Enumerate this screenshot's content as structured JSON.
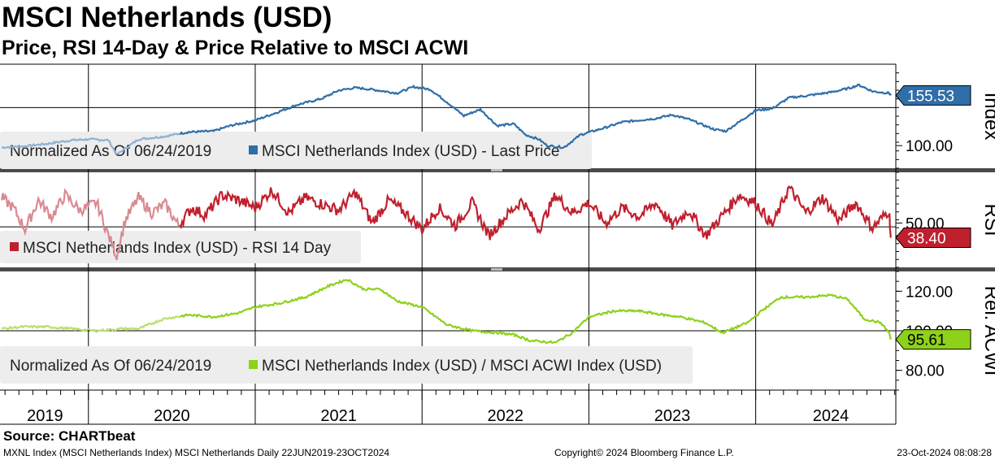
{
  "title": "MSCI Netherlands (USD)",
  "subtitle": "Price, RSI 14-Day & Price Relative to MSCI ACWI",
  "source": "Source: CHARTbeat",
  "footer": {
    "left": "MXNL Index (MSCI Netherlands Index) MSCI Netherlands  Daily 22JUN2019-23OCT2024",
    "center": "Copyright© 2024 Bloomberg Finance L.P.",
    "right": "23-Oct-2024 08:08:28"
  },
  "colors": {
    "price": "#2f6ea8",
    "price_early": "#8fb1d3",
    "rsi": "#c0202e",
    "rsi_early": "#d98a92",
    "rel": "#8ed11a",
    "rel_early": "#b9e06c",
    "legend_bg": "#ededed"
  },
  "chart_data": [
    {
      "type": "line",
      "panel": "Index",
      "axis_title": "Index",
      "legend_prefix": "Normalized As Of 06/24/2019",
      "legend": "MSCI Netherlands Index (USD) - Last Price",
      "ylim": [
        75,
        190
      ],
      "yticks": [
        100
      ],
      "tick_labels": [
        "100.00"
      ],
      "hline": 142,
      "last_value": 155.53,
      "last_label": "155.53",
      "series": [
        {
          "name": "MSCI Netherlands Index (USD) - Last Price",
          "x": [
            2019.48,
            2019.6,
            2019.75,
            2019.9,
            2020.0,
            2020.12,
            2020.17,
            2020.2,
            2020.3,
            2020.45,
            2020.6,
            2020.75,
            2020.85,
            2021.0,
            2021.12,
            2021.25,
            2021.4,
            2021.5,
            2021.6,
            2021.7,
            2021.85,
            2021.95,
            2022.05,
            2022.15,
            2022.25,
            2022.35,
            2022.45,
            2022.55,
            2022.62,
            2022.7,
            2022.75,
            2022.85,
            2022.95,
            2023.1,
            2023.2,
            2023.3,
            2023.4,
            2023.5,
            2023.6,
            2023.75,
            2023.82,
            2023.9,
            2024.0,
            2024.1,
            2024.2,
            2024.3,
            2024.45,
            2024.55,
            2024.62,
            2024.7,
            2024.8,
            2024.81
          ],
          "values": [
            98,
            99,
            102,
            106,
            107,
            106,
            90,
            94,
            107,
            110,
            115,
            116,
            122,
            128,
            136,
            145,
            152,
            161,
            164,
            162,
            158,
            165,
            162,
            148,
            133,
            140,
            122,
            124,
            112,
            107,
            100,
            98,
            112,
            120,
            126,
            128,
            130,
            134,
            129,
            118,
            116,
            126,
            139,
            141,
            153,
            155,
            159,
            163,
            167,
            160,
            158,
            155.53
          ]
        }
      ]
    },
    {
      "type": "line",
      "panel": "RSI",
      "axis_title": "RSI",
      "legend": "MSCI Netherlands Index (USD) - RSI 14 Day",
      "ylim": [
        15,
        90
      ],
      "yticks": [
        50
      ],
      "tick_labels": [
        "50.00"
      ],
      "hline": 47,
      "last_value": 38.4,
      "last_label": "38.40",
      "series": [
        {
          "name": "MSCI Netherlands Index (USD) - RSI 14 Day",
          "x": [
            2019.48,
            2019.55,
            2019.62,
            2019.7,
            2019.78,
            2019.86,
            2019.95,
            2020.05,
            2020.12,
            2020.17,
            2020.22,
            2020.3,
            2020.38,
            2020.46,
            2020.54,
            2020.62,
            2020.7,
            2020.8,
            2020.9,
            2021.0,
            2021.1,
            2021.2,
            2021.3,
            2021.4,
            2021.5,
            2021.6,
            2021.7,
            2021.8,
            2021.9,
            2022.0,
            2022.1,
            2022.2,
            2022.3,
            2022.4,
            2022.5,
            2022.6,
            2022.7,
            2022.8,
            2022.9,
            2023.0,
            2023.1,
            2023.2,
            2023.3,
            2023.4,
            2023.5,
            2023.6,
            2023.7,
            2023.8,
            2023.9,
            2024.0,
            2024.1,
            2024.2,
            2024.3,
            2024.4,
            2024.5,
            2024.6,
            2024.7,
            2024.8,
            2024.81
          ],
          "values": [
            70,
            62,
            45,
            68,
            55,
            72,
            60,
            66,
            40,
            24,
            52,
            70,
            58,
            65,
            48,
            62,
            56,
            72,
            68,
            62,
            76,
            58,
            70,
            65,
            60,
            74,
            50,
            68,
            58,
            45,
            62,
            48,
            66,
            40,
            55,
            68,
            45,
            72,
            58,
            66,
            50,
            62,
            55,
            66,
            48,
            60,
            40,
            56,
            72,
            66,
            48,
            78,
            58,
            70,
            52,
            66,
            46,
            60,
            38.4
          ]
        }
      ]
    },
    {
      "type": "line",
      "panel": "Rel. ACWI",
      "axis_title": "Rel. ACWI",
      "legend_prefix": "Normalized As Of 06/24/2019",
      "legend": "MSCI Netherlands Index (USD) / MSCI ACWI Index (USD)",
      "ylim": [
        70,
        130
      ],
      "yticks": [
        120,
        100,
        80
      ],
      "tick_labels": [
        "120.00",
        "100.00",
        "80.00"
      ],
      "hline": 100,
      "last_value": 95.61,
      "last_label": "95.61",
      "series": [
        {
          "name": "MSCI Netherlands Index (USD) / MSCI ACWI Index (USD)",
          "x": [
            2019.48,
            2019.6,
            2019.75,
            2019.9,
            2020.05,
            2020.2,
            2020.3,
            2020.45,
            2020.6,
            2020.75,
            2020.9,
            2021.0,
            2021.15,
            2021.3,
            2021.45,
            2021.55,
            2021.65,
            2021.75,
            2021.85,
            2022.0,
            2022.15,
            2022.3,
            2022.45,
            2022.55,
            2022.65,
            2022.8,
            2022.9,
            2023.0,
            2023.15,
            2023.3,
            2023.45,
            2023.55,
            2023.7,
            2023.8,
            2023.95,
            2024.05,
            2024.15,
            2024.3,
            2024.45,
            2024.55,
            2024.65,
            2024.75,
            2024.8,
            2024.81
          ],
          "values": [
            101,
            102,
            102,
            101,
            100,
            101,
            101,
            106,
            108,
            107,
            109,
            112,
            114,
            117,
            123,
            126,
            121,
            121,
            115,
            112,
            103,
            100,
            99,
            98,
            95,
            94,
            99,
            107,
            110,
            110,
            108,
            107,
            104,
            99,
            104,
            111,
            117,
            117,
            118,
            116,
            106,
            104,
            99,
            95.61
          ]
        }
      ]
    }
  ],
  "x_axis": {
    "year_labels": [
      "2019",
      "2020",
      "2021",
      "2022",
      "2023",
      "2024"
    ],
    "range": [
      2019.47,
      2024.84
    ]
  }
}
